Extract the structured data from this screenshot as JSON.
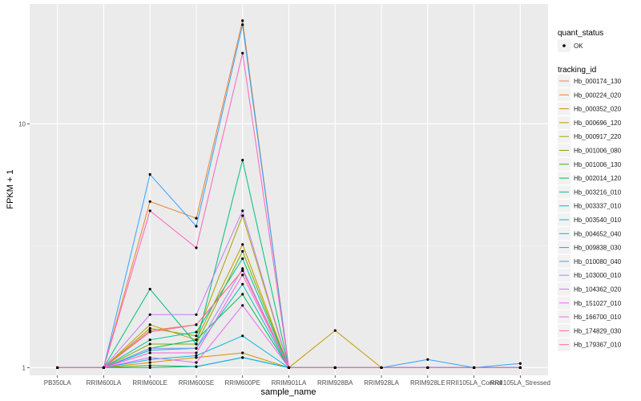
{
  "chart_data": {
    "type": "line",
    "title": "",
    "xlabel": "sample_name",
    "ylabel": "FPKM + 1",
    "y_scale": "log10",
    "ylim": [
      0.93,
      31
    ],
    "y_ticks": [
      1,
      10
    ],
    "y_tick_labels": [
      "1",
      "10"
    ],
    "categories": [
      "PB350LA",
      "RRIM600LA",
      "RRIM600LE",
      "RRIM600SE",
      "RRIM600PE",
      "RRIM901LA",
      "RRIM928BA",
      "RRIM928LA",
      "RRIM928LE",
      "RRII105LA_Control",
      "RRII105LA_Stressed"
    ],
    "grid": true,
    "legend_position": "right",
    "legend_quant_status": {
      "title": "quant_status",
      "entries": [
        "OK"
      ]
    },
    "legend_tracking_id": {
      "title": "tracking_id"
    },
    "series": [
      {
        "name": "Hb_000174_130",
        "color": "#F8766D",
        "values": [
          1,
          1,
          1.42,
          1.5,
          2.5,
          1,
          1,
          1,
          1,
          1,
          1
        ]
      },
      {
        "name": "Hb_000224_020",
        "color": "#EA8331",
        "values": [
          1,
          1,
          4.8,
          4.1,
          26.5,
          1,
          1,
          1,
          1,
          1,
          1
        ]
      },
      {
        "name": "Hb_000352_020",
        "color": "#D89000",
        "values": [
          1,
          1,
          1.05,
          1.1,
          1.15,
          1,
          1,
          1,
          1,
          1,
          1
        ]
      },
      {
        "name": "Hb_000696_120",
        "color": "#C09B00",
        "values": [
          1,
          1,
          1.5,
          1.3,
          3.2,
          1,
          1.42,
          1,
          1,
          1,
          1
        ]
      },
      {
        "name": "Hb_000917_220",
        "color": "#A3A500",
        "values": [
          1,
          1,
          1.45,
          1.35,
          4.2,
          1,
          1,
          1,
          1,
          1,
          1
        ]
      },
      {
        "name": "Hb_001006_080",
        "color": "#7CAE00",
        "values": [
          1,
          1,
          1.25,
          1.25,
          3.0,
          1,
          1,
          1,
          1,
          1,
          1
        ]
      },
      {
        "name": "Hb_001006_130",
        "color": "#39B600",
        "values": [
          1,
          1,
          1.02,
          1.01,
          1.1,
          1,
          1,
          1,
          1,
          1,
          1
        ]
      },
      {
        "name": "Hb_002014_120",
        "color": "#00BB4E",
        "values": [
          1,
          1,
          1.2,
          1.3,
          2.0,
          1,
          1,
          1,
          1,
          1,
          1
        ]
      },
      {
        "name": "Hb_003216_010",
        "color": "#00BF7D",
        "values": [
          1,
          1,
          2.1,
          1.25,
          7.1,
          1,
          1,
          1,
          1,
          1,
          1
        ]
      },
      {
        "name": "Hb_003337_010",
        "color": "#00C1A3",
        "values": [
          1,
          1,
          1.3,
          1.4,
          2.8,
          1,
          1,
          1,
          1,
          1,
          1
        ]
      },
      {
        "name": "Hb_003540_010",
        "color": "#00BFC4",
        "values": [
          1,
          1,
          1.18,
          1.2,
          2.2,
          1,
          1,
          1,
          1,
          1,
          1
        ]
      },
      {
        "name": "Hb_004652_040",
        "color": "#00BAE0",
        "values": [
          1,
          1,
          1.08,
          1.12,
          1.35,
          1,
          1,
          1,
          1,
          1,
          1
        ]
      },
      {
        "name": "Hb_009838_030",
        "color": "#00B0F6",
        "values": [
          1,
          1,
          1.0,
          1.01,
          1.1,
          1,
          1,
          1,
          1,
          1,
          1
        ]
      },
      {
        "name": "Hb_010080_040",
        "color": "#35A2FF",
        "values": [
          1,
          1,
          6.2,
          3.8,
          25.5,
          1,
          1,
          1,
          1.08,
          1,
          1.04
        ]
      },
      {
        "name": "Hb_103000_010",
        "color": "#9590FF",
        "values": [
          1,
          1,
          1.2,
          1.2,
          2.55,
          1,
          1,
          1,
          1,
          1,
          1
        ]
      },
      {
        "name": "Hb_104362_020",
        "color": "#C77CFF",
        "values": [
          1,
          1,
          1.65,
          1.65,
          4.4,
          1,
          1,
          1,
          1,
          1,
          1
        ]
      },
      {
        "name": "Hb_151027_010",
        "color": "#E76BF3",
        "values": [
          1,
          1,
          1.1,
          1.05,
          1.8,
          1,
          1,
          1,
          1,
          1,
          1
        ]
      },
      {
        "name": "Hb_166700_010",
        "color": "#FA62DB",
        "values": [
          1,
          1,
          1.15,
          1.15,
          2.4,
          1,
          1,
          1,
          1,
          1,
          1
        ]
      },
      {
        "name": "Hb_174829_030",
        "color": "#FF62BC",
        "values": [
          1,
          1,
          4.4,
          3.1,
          19.5,
          1,
          1,
          1,
          1,
          1,
          1
        ]
      },
      {
        "name": "Hb_179367_010",
        "color": "#FF6C91",
        "values": [
          1,
          1,
          1.4,
          1.5,
          2.5,
          1,
          1,
          1,
          1,
          1,
          1
        ]
      }
    ]
  }
}
